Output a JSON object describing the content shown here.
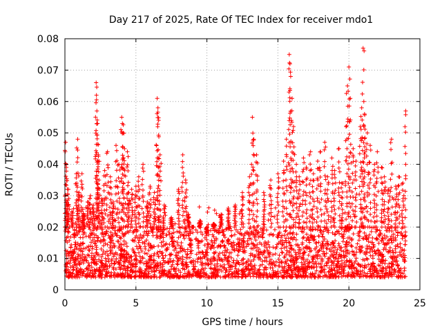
{
  "chart_data": {
    "type": "scatter",
    "title": "Day 217 of 2025, Rate Of TEC Index for receiver mdo1",
    "xlabel": "GPS time / hours",
    "ylabel": "ROTI / TECUs",
    "xlim": [
      0,
      25
    ],
    "ylim": [
      0,
      0.08
    ],
    "x_ticks": [
      "0",
      "5",
      "10",
      "15",
      "20",
      "25"
    ],
    "y_ticks": [
      "0",
      "0.01",
      "0.02",
      "0.03",
      "0.04",
      "0.05",
      "0.06",
      "0.07",
      "0.08"
    ],
    "grid": true,
    "marker": "+",
    "color": "#ff0000",
    "baseline_band": {
      "x_range": [
        0,
        24
      ],
      "y_range": [
        0.004,
        0.02
      ]
    },
    "series": [
      {
        "x": [
          0.05,
          0.1,
          0.15,
          0.25,
          0.5,
          0.8,
          0.9,
          1.0,
          1.2,
          1.3,
          1.6,
          1.8,
          2.0,
          2.2,
          2.22,
          2.25,
          2.3,
          2.35,
          2.4,
          2.6,
          2.8,
          3.0,
          3.2,
          3.4,
          3.6,
          3.8,
          4.0,
          4.05,
          4.1,
          4.2,
          4.4,
          4.5,
          4.7,
          5.0,
          5.2,
          5.5,
          5.8,
          6.0,
          6.3,
          6.5,
          6.55,
          6.6,
          6.7,
          7.0,
          7.5,
          8.0,
          8.3,
          8.5,
          8.7,
          9.0,
          9.5,
          10.0,
          10.5,
          11.0,
          11.5,
          12.0,
          12.5,
          13.0,
          13.2,
          13.3,
          13.5,
          14.0,
          14.5,
          15.0,
          15.4,
          15.6,
          15.8,
          15.85,
          15.9,
          16.0,
          16.1,
          16.3,
          16.5,
          16.8,
          17.0,
          17.3,
          17.5,
          17.8,
          18.0,
          18.3,
          18.5,
          18.8,
          19.0,
          19.3,
          19.5,
          19.8,
          19.9,
          20.0,
          20.1,
          20.3,
          20.5,
          20.8,
          20.9,
          21.0,
          21.05,
          21.1,
          21.3,
          21.5,
          21.8,
          22.0,
          22.3,
          22.5,
          22.8,
          23.0,
          23.3,
          23.5,
          23.8,
          24.0
        ],
        "y": [
          0.047,
          0.039,
          0.028,
          0.032,
          0.025,
          0.037,
          0.048,
          0.031,
          0.037,
          0.024,
          0.028,
          0.03,
          0.027,
          0.066,
          0.062,
          0.057,
          0.053,
          0.043,
          0.035,
          0.029,
          0.038,
          0.044,
          0.036,
          0.028,
          0.046,
          0.04,
          0.055,
          0.053,
          0.05,
          0.045,
          0.044,
          0.031,
          0.032,
          0.033,
          0.036,
          0.04,
          0.028,
          0.033,
          0.031,
          0.061,
          0.058,
          0.054,
          0.043,
          0.027,
          0.023,
          0.032,
          0.043,
          0.035,
          0.024,
          0.02,
          0.022,
          0.018,
          0.021,
          0.024,
          0.026,
          0.027,
          0.031,
          0.036,
          0.055,
          0.048,
          0.043,
          0.031,
          0.035,
          0.037,
          0.041,
          0.048,
          0.075,
          0.072,
          0.068,
          0.061,
          0.052,
          0.04,
          0.036,
          0.042,
          0.039,
          0.044,
          0.037,
          0.041,
          0.044,
          0.047,
          0.036,
          0.042,
          0.038,
          0.045,
          0.034,
          0.052,
          0.065,
          0.071,
          0.061,
          0.045,
          0.041,
          0.052,
          0.058,
          0.077,
          0.06,
          0.056,
          0.05,
          0.046,
          0.04,
          0.044,
          0.039,
          0.036,
          0.032,
          0.048,
          0.033,
          0.036,
          0.034,
          0.057
        ]
      }
    ]
  }
}
